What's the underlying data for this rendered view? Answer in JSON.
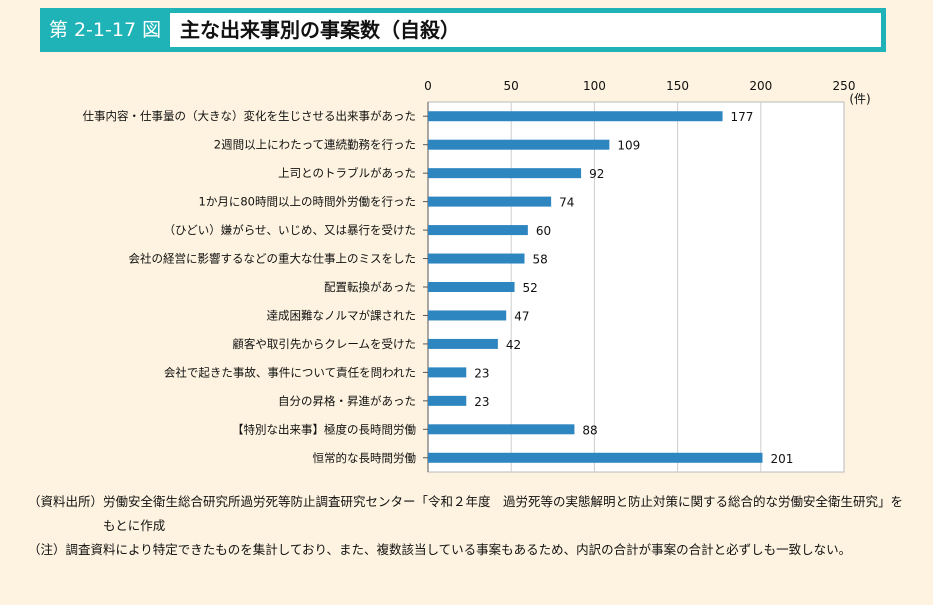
{
  "header": {
    "figure_number": "第 2-1-17 図",
    "title": "主な出来事別の事案数（自殺）"
  },
  "chart_data": {
    "type": "bar",
    "orientation": "horizontal",
    "unit_label": "(件)",
    "xlim": [
      0,
      250
    ],
    "ticks": [
      0,
      50,
      100,
      150,
      200,
      250
    ],
    "grid": true,
    "categories": [
      "仕事内容・仕事量の（大きな）変化を生じさせる出来事があった",
      "2週間以上にわたって連続勤務を行った",
      "上司とのトラブルがあった",
      "1か月に80時間以上の時間外労働を行った",
      "（ひどい）嫌がらせ、いじめ、又は暴行を受けた",
      "会社の経営に影響するなどの重大な仕事上のミスをした",
      "配置転換があった",
      "達成困難なノルマが課された",
      "顧客や取引先からクレームを受けた",
      "会社で起きた事故、事件について責任を問われた",
      "自分の昇格・昇進があった",
      "【特別な出来事】極度の長時間労働",
      "恒常的な長時間労働"
    ],
    "values": [
      177,
      109,
      92,
      74,
      60,
      58,
      52,
      47,
      42,
      23,
      23,
      88,
      201
    ],
    "bar_color": "#2e86c1"
  },
  "notes": {
    "source_label": "（資料出所）",
    "source_text": "労働安全衛生総合研究所過労死等防止調査研究センター「令和２年度　過労死等の実態解明と防止対策に関する総合的な労働安全衛生研究」をもとに作成",
    "note_label": "（注）",
    "note_text": "調査資料により特定できたものを集計しており、また、複数該当している事案もあるため、内訳の合計が事案の合計と必ずしも一致しない。"
  }
}
